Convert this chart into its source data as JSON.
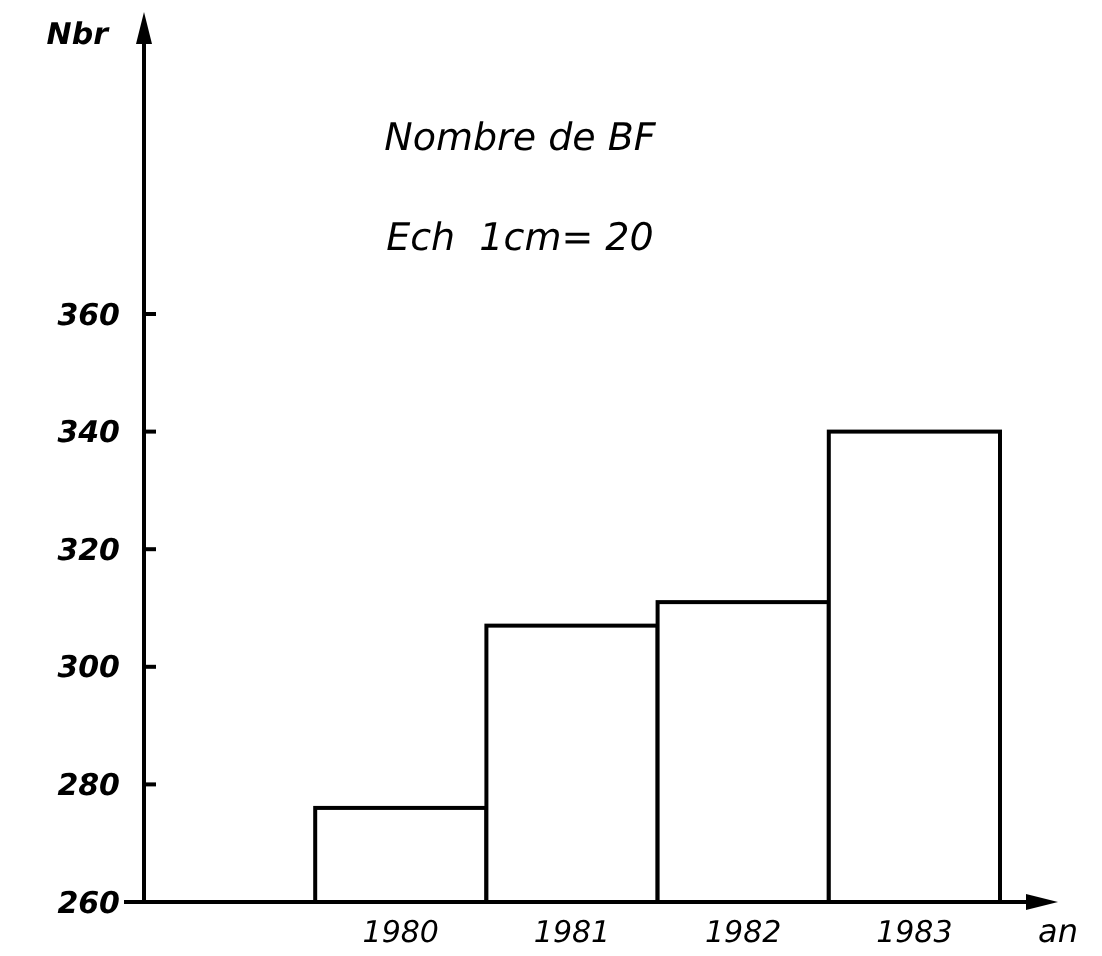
{
  "chart_data": {
    "type": "bar",
    "title": "Nombre de BF",
    "subtitle": "Ech  1cm= 20",
    "xlabel": "an",
    "ylabel": "Nbr",
    "categories": [
      null,
      "1980",
      "1981",
      "1982",
      "1983"
    ],
    "values": [
      null,
      276,
      307,
      311,
      340
    ],
    "color": "#000000",
    "ylim": [
      260,
      410
    ],
    "yticks": [
      260,
      280,
      300,
      320,
      340,
      360
    ],
    "grid": false
  }
}
